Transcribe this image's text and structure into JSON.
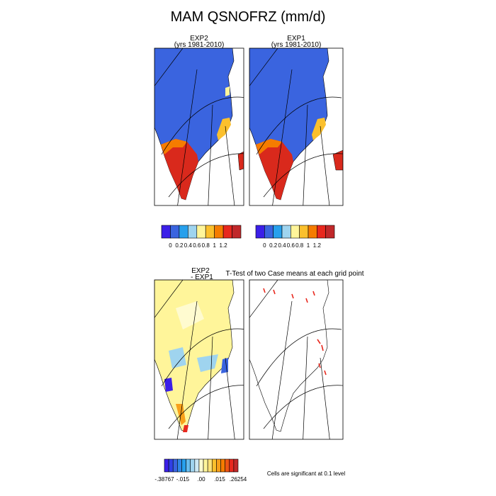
{
  "title": "MAM QSNOFRZ (mm/d)",
  "panels": [
    {
      "title": "EXP2",
      "subtitle": "(yrs 1981-2010)"
    },
    {
      "title": "EXP1",
      "subtitle": "(yrs 1981-2010)"
    },
    {
      "title": "EXP2",
      "subtitle": "- EXP1"
    },
    {
      "title": "T-Test of two Case means at each grid point"
    }
  ],
  "colorbars": [
    {
      "colors": [
        "#3b1fe8",
        "#3a64df",
        "#27a0ec",
        "#9fd4ef",
        "#fff59a",
        "#fbc02d",
        "#f57c00",
        "#e8281e",
        "#c0282a"
      ],
      "ticks": [
        0,
        0.2,
        0.4,
        0.6,
        0.8,
        1,
        1.2
      ]
    },
    {
      "colors": [
        "#3b1fe8",
        "#3a64df",
        "#27a0ec",
        "#9fd4ef",
        "#fff59a",
        "#fbc02d",
        "#f57c00",
        "#e8281e",
        "#c0282a"
      ],
      "ticks": [
        0,
        0.2,
        0.4,
        0.6,
        0.8,
        1,
        1.2
      ]
    },
    {
      "colors": [
        "#3b1fe8",
        "#2f3fe6",
        "#3a64df",
        "#2f86e8",
        "#27a0ec",
        "#67bdee",
        "#9fd4ef",
        "#cde9f4",
        "#fffbd0",
        "#fff59a",
        "#fde27a",
        "#fbc02d",
        "#f8a01a",
        "#f57c00",
        "#ee5514",
        "#e8281e",
        "#c0282a"
      ],
      "ticks": [
        {
          "value": -0.38767,
          "label": "-.38767"
        },
        {
          "value": -0.015,
          "label": "-.015"
        },
        {
          "value": 0,
          "label": ".00"
        },
        {
          "value": 0.015,
          "label": ".015"
        },
        {
          "value": 0.26254,
          "label": ".26254"
        }
      ]
    }
  ],
  "note": "Cells are significant at 0.1 level"
}
